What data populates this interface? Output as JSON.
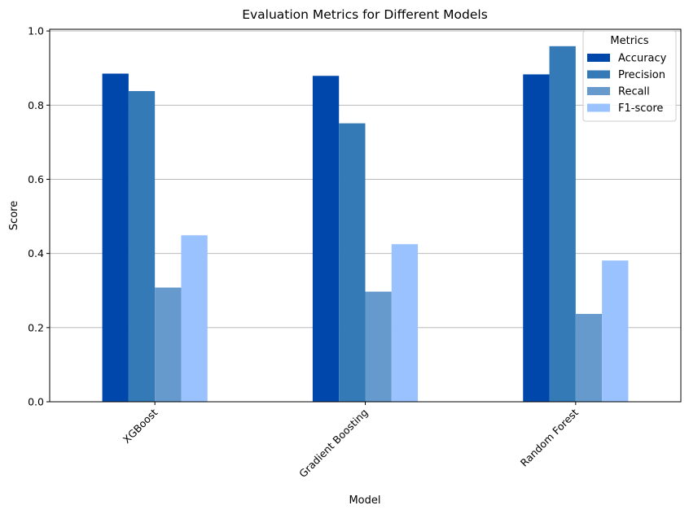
{
  "chart_data": {
    "type": "bar",
    "title": "Evaluation Metrics for Different Models",
    "xlabel": "Model",
    "ylabel": "Score",
    "categories": [
      "XGBoost",
      "Gradient Boosting",
      "Random Forest"
    ],
    "series": [
      {
        "name": "Accuracy",
        "color": "#0047ab",
        "values": [
          0.885,
          0.879,
          0.883
        ]
      },
      {
        "name": "Precision",
        "color": "#337ab7",
        "values": [
          0.838,
          0.751,
          0.959
        ]
      },
      {
        "name": "Recall",
        "color": "#6699cc",
        "values": [
          0.308,
          0.297,
          0.237
        ]
      },
      {
        "name": "F1-score",
        "color": "#99c2ff",
        "values": [
          0.449,
          0.425,
          0.381
        ]
      }
    ],
    "ylim": [
      0,
      1.0
    ],
    "yticks": [
      "0.0",
      "0.2",
      "0.4",
      "0.6",
      "0.8",
      "1.0"
    ],
    "ytick_values": [
      0.0,
      0.2,
      0.4,
      0.6,
      0.8,
      1.0
    ],
    "grid": "y",
    "legend": {
      "title": "Metrics",
      "placement": "top-right"
    },
    "xtick_rotation": 45
  }
}
